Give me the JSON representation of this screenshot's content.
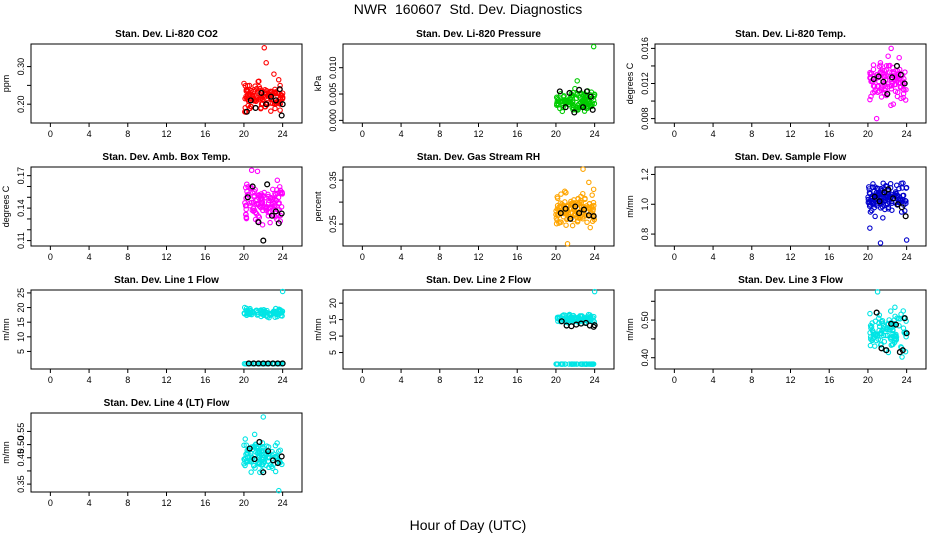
{
  "figure": {
    "title": "NWR  160607  Std. Dev. Diagnostics",
    "xlabel": "Hour of Day (UTC)"
  },
  "chart_data": [
    {
      "type": "scatter",
      "title": "Stan. Dev. Li-820 CO2",
      "ylabel": "ppm",
      "xlim": [
        -2,
        26
      ],
      "ylim": [
        0.15,
        0.36
      ],
      "xticks": [
        0,
        4,
        8,
        12,
        16,
        20,
        24
      ],
      "yticks": [
        0.2,
        0.25,
        0.3
      ],
      "ytick_labels": [
        "0.20",
        "",
        "0.30"
      ],
      "color": "#ff0000",
      "x_range": [
        20,
        24
      ],
      "y_spread": [
        0.16,
        0.28
      ],
      "n_points": 120,
      "outliers": [
        {
          "x": 22.1,
          "y": 0.35
        },
        {
          "x": 22.3,
          "y": 0.31
        },
        {
          "x": 23.1,
          "y": 0.28
        }
      ],
      "black_points": [
        {
          "x": 20.3,
          "y": 0.18
        },
        {
          "x": 20.7,
          "y": 0.21
        },
        {
          "x": 21.2,
          "y": 0.19
        },
        {
          "x": 21.8,
          "y": 0.23
        },
        {
          "x": 22.3,
          "y": 0.2
        },
        {
          "x": 22.8,
          "y": 0.22
        },
        {
          "x": 23.3,
          "y": 0.21
        },
        {
          "x": 23.7,
          "y": 0.24
        },
        {
          "x": 23.9,
          "y": 0.17
        },
        {
          "x": 24.0,
          "y": 0.2
        }
      ]
    },
    {
      "type": "scatter",
      "title": "Stan. Dev. Li-820 Pressure",
      "ylabel": "kPa",
      "xlim": [
        -2,
        26
      ],
      "ylim": [
        -0.0005,
        0.0145
      ],
      "xticks": [
        0,
        4,
        8,
        12,
        16,
        20,
        24
      ],
      "yticks": [
        0.0,
        0.005,
        0.01
      ],
      "ytick_labels": [
        "0.000",
        "0.005",
        "0.010"
      ],
      "color": "#00cc00",
      "x_range": [
        20,
        24
      ],
      "y_spread": [
        0.0005,
        0.0065
      ],
      "n_points": 110,
      "outliers": [
        {
          "x": 23.9,
          "y": 0.014
        },
        {
          "x": 22.2,
          "y": 0.0075
        }
      ],
      "black_points": [
        {
          "x": 20.4,
          "y": 0.0055
        },
        {
          "x": 21.0,
          "y": 0.0025
        },
        {
          "x": 21.4,
          "y": 0.0052
        },
        {
          "x": 21.9,
          "y": 0.0015
        },
        {
          "x": 22.4,
          "y": 0.0058
        },
        {
          "x": 22.8,
          "y": 0.0025
        },
        {
          "x": 23.2,
          "y": 0.0055
        },
        {
          "x": 23.6,
          "y": 0.0045
        },
        {
          "x": 23.8,
          "y": 0.002
        }
      ]
    },
    {
      "type": "scatter",
      "title": "Stan. Dev. Li-820 Temp.",
      "ylabel": "degrees C",
      "xlim": [
        -2,
        26
      ],
      "ylim": [
        0.0075,
        0.0165
      ],
      "xticks": [
        0,
        4,
        8,
        12,
        16,
        20,
        24
      ],
      "yticks": [
        0.008,
        0.01,
        0.012,
        0.014,
        0.016
      ],
      "ytick_labels": [
        "0.008",
        "",
        "0.012",
        "",
        "0.016"
      ],
      "color": "#ff00ff",
      "x_range": [
        20.2,
        24
      ],
      "y_spread": [
        0.009,
        0.0155
      ],
      "n_points": 110,
      "outliers": [
        {
          "x": 20.9,
          "y": 0.008
        },
        {
          "x": 22.4,
          "y": 0.016
        }
      ],
      "black_points": [
        {
          "x": 20.6,
          "y": 0.0125
        },
        {
          "x": 21.1,
          "y": 0.0128
        },
        {
          "x": 21.6,
          "y": 0.0122
        },
        {
          "x": 22.0,
          "y": 0.0108
        },
        {
          "x": 22.5,
          "y": 0.0127
        },
        {
          "x": 23.0,
          "y": 0.014
        },
        {
          "x": 23.4,
          "y": 0.013
        },
        {
          "x": 23.8,
          "y": 0.012
        }
      ]
    },
    {
      "type": "scatter",
      "title": "Stan. Dev. Amb. Box Temp.",
      "ylabel": "degrees C",
      "xlim": [
        -2,
        26
      ],
      "ylim": [
        0.105,
        0.178
      ],
      "xticks": [
        0,
        4,
        8,
        12,
        16,
        20,
        24
      ],
      "yticks": [
        0.11,
        0.12,
        0.13,
        0.14,
        0.15,
        0.16,
        0.17
      ],
      "ytick_labels": [
        "0.11",
        "",
        "",
        "0.14",
        "",
        "",
        "0.17"
      ],
      "color": "#ff00ff",
      "x_range": [
        20,
        24
      ],
      "y_spread": [
        0.12,
        0.168
      ],
      "n_points": 120,
      "outliers": [
        {
          "x": 20.8,
          "y": 0.175
        },
        {
          "x": 21.4,
          "y": 0.174
        }
      ],
      "black_points": [
        {
          "x": 20.4,
          "y": 0.15
        },
        {
          "x": 20.9,
          "y": 0.16
        },
        {
          "x": 21.5,
          "y": 0.127
        },
        {
          "x": 22.0,
          "y": 0.11
        },
        {
          "x": 22.4,
          "y": 0.162
        },
        {
          "x": 22.9,
          "y": 0.133
        },
        {
          "x": 23.3,
          "y": 0.137
        },
        {
          "x": 23.6,
          "y": 0.126
        },
        {
          "x": 23.9,
          "y": 0.135
        }
      ]
    },
    {
      "type": "scatter",
      "title": "Stan. Dev. Gas Stream RH",
      "ylabel": "percent",
      "xlim": [
        -2,
        26
      ],
      "ylim": [
        0.2,
        0.38
      ],
      "xticks": [
        0,
        4,
        8,
        12,
        16,
        20,
        24
      ],
      "yticks": [
        0.25,
        0.3,
        0.35
      ],
      "ytick_labels": [
        "0.25",
        "",
        "0.35"
      ],
      "color": "#ffa500",
      "x_range": [
        20,
        24
      ],
      "y_spread": [
        0.23,
        0.34
      ],
      "n_points": 130,
      "outliers": [
        {
          "x": 22.8,
          "y": 0.375
        },
        {
          "x": 21.2,
          "y": 0.205
        },
        {
          "x": 23.4,
          "y": 0.345
        }
      ],
      "black_points": [
        {
          "x": 20.5,
          "y": 0.275
        },
        {
          "x": 21.0,
          "y": 0.285
        },
        {
          "x": 21.5,
          "y": 0.262
        },
        {
          "x": 22.0,
          "y": 0.29
        },
        {
          "x": 22.4,
          "y": 0.275
        },
        {
          "x": 22.9,
          "y": 0.283
        },
        {
          "x": 23.4,
          "y": 0.27
        },
        {
          "x": 23.9,
          "y": 0.268
        }
      ]
    },
    {
      "type": "scatter",
      "title": "Stan. Dev. Sample Flow",
      "ylabel": "m/mn",
      "xlim": [
        -2,
        26
      ],
      "ylim": [
        0.72,
        1.25
      ],
      "xticks": [
        0,
        4,
        8,
        12,
        16,
        20,
        24
      ],
      "yticks": [
        0.8,
        1.0,
        1.2
      ],
      "ytick_labels": [
        "0.8",
        "1.0",
        "1.2"
      ],
      "color": "#0000cc",
      "x_range": [
        20,
        24
      ],
      "y_spread": [
        0.88,
        1.22
      ],
      "n_points": 130,
      "outliers": [
        {
          "x": 21.3,
          "y": 0.74
        },
        {
          "x": 24.0,
          "y": 0.76
        },
        {
          "x": 20.2,
          "y": 0.84
        }
      ],
      "black_points": [
        {
          "x": 20.7,
          "y": 1.05
        },
        {
          "x": 21.2,
          "y": 1.02
        },
        {
          "x": 21.7,
          "y": 1.08
        },
        {
          "x": 22.1,
          "y": 1.1
        },
        {
          "x": 22.6,
          "y": 1.04
        },
        {
          "x": 23.1,
          "y": 1.0
        },
        {
          "x": 23.5,
          "y": 0.98
        },
        {
          "x": 23.9,
          "y": 0.92
        }
      ]
    },
    {
      "type": "scatter",
      "title": "Stan. Dev. Line 1 Flow",
      "ylabel": "m/mn",
      "xlim": [
        -2,
        26
      ],
      "ylim": [
        -1,
        26
      ],
      "xticks": [
        0,
        4,
        8,
        12,
        16,
        20,
        24
      ],
      "yticks": [
        5,
        10,
        15,
        20,
        25
      ],
      "ytick_labels": [
        "5",
        "10",
        "15",
        "20",
        "25"
      ],
      "color": "#00e5e5",
      "x_range": [
        20,
        24
      ],
      "y_spread": [
        16,
        20.5
      ],
      "n_points": 90,
      "outliers": [
        {
          "x": 24.0,
          "y": 25.5
        }
      ],
      "low_band": {
        "y": 0.8,
        "n": 40
      },
      "black_points": [
        {
          "x": 20.5,
          "y": 0.9
        },
        {
          "x": 21.0,
          "y": 0.9
        },
        {
          "x": 21.5,
          "y": 0.9
        },
        {
          "x": 22.0,
          "y": 0.9
        },
        {
          "x": 22.5,
          "y": 0.9
        },
        {
          "x": 23.0,
          "y": 0.9
        },
        {
          "x": 23.5,
          "y": 0.9
        },
        {
          "x": 24.0,
          "y": 0.9
        }
      ]
    },
    {
      "type": "scatter",
      "title": "Stan. Dev. Line 2 Flow",
      "ylabel": "m/mn",
      "xlim": [
        -2,
        26
      ],
      "ylim": [
        0,
        24
      ],
      "xticks": [
        0,
        4,
        8,
        12,
        16,
        20,
        24
      ],
      "yticks": [
        5,
        10,
        15,
        20
      ],
      "ytick_labels": [
        "5",
        "10",
        "15",
        "20"
      ],
      "color": "#00e5e5",
      "x_range": [
        20,
        24
      ],
      "y_spread": [
        13,
        17.5
      ],
      "n_points": 90,
      "outliers": [
        {
          "x": 24.0,
          "y": 23.5
        }
      ],
      "low_band": {
        "y": 1.5,
        "n": 40
      },
      "black_points": [
        {
          "x": 20.6,
          "y": 14.5
        },
        {
          "x": 21.1,
          "y": 13.2
        },
        {
          "x": 21.6,
          "y": 13.0
        },
        {
          "x": 22.1,
          "y": 13.5
        },
        {
          "x": 22.6,
          "y": 13.8
        },
        {
          "x": 23.1,
          "y": 14.0
        },
        {
          "x": 23.5,
          "y": 13.2
        },
        {
          "x": 23.9,
          "y": 12.8
        },
        {
          "x": 24.0,
          "y": 13.3
        }
      ]
    },
    {
      "type": "scatter",
      "title": "Stan. Dev. Line 3 Flow",
      "ylabel": "m/mn",
      "xlim": [
        -2,
        26
      ],
      "ylim": [
        0.37,
        0.58
      ],
      "xticks": [
        0,
        4,
        8,
        12,
        16,
        20,
        24
      ],
      "yticks": [
        0.4,
        0.45,
        0.5,
        0.55
      ],
      "ytick_labels": [
        "0.40",
        "",
        "0.50",
        ""
      ],
      "color": "#00e5e5",
      "x_range": [
        20.2,
        24
      ],
      "y_spread": [
        0.39,
        0.56
      ],
      "n_points": 110,
      "outliers": [
        {
          "x": 21.0,
          "y": 0.575
        }
      ],
      "black_points": [
        {
          "x": 20.9,
          "y": 0.52
        },
        {
          "x": 21.4,
          "y": 0.425
        },
        {
          "x": 21.9,
          "y": 0.42
        },
        {
          "x": 22.4,
          "y": 0.49
        },
        {
          "x": 22.9,
          "y": 0.488
        },
        {
          "x": 23.3,
          "y": 0.415
        },
        {
          "x": 23.6,
          "y": 0.42
        },
        {
          "x": 23.8,
          "y": 0.505
        },
        {
          "x": 24.0,
          "y": 0.465
        }
      ]
    },
    {
      "type": "scatter",
      "title": "Stan. Dev. Line 4 (LT) Flow",
      "ylabel": "m/mn",
      "xlim": [
        -2,
        26
      ],
      "ylim": [
        0.32,
        0.62
      ],
      "xticks": [
        0,
        4,
        8,
        12,
        16,
        20,
        24
      ],
      "yticks": [
        0.35,
        0.4,
        0.45,
        0.5,
        0.55
      ],
      "ytick_labels": [
        "0.35",
        "",
        "0.45",
        "0.50",
        "0.55"
      ],
      "color": "#00e5e5",
      "x_range": [
        20,
        24
      ],
      "y_spread": [
        0.37,
        0.55
      ],
      "n_points": 110,
      "outliers": [
        {
          "x": 22.0,
          "y": 0.605
        },
        {
          "x": 23.6,
          "y": 0.325
        }
      ],
      "black_points": [
        {
          "x": 20.6,
          "y": 0.485
        },
        {
          "x": 21.1,
          "y": 0.445
        },
        {
          "x": 21.6,
          "y": 0.51
        },
        {
          "x": 22.0,
          "y": 0.395
        },
        {
          "x": 22.5,
          "y": 0.475
        },
        {
          "x": 23.0,
          "y": 0.44
        },
        {
          "x": 23.5,
          "y": 0.43
        },
        {
          "x": 23.9,
          "y": 0.455
        }
      ]
    }
  ]
}
